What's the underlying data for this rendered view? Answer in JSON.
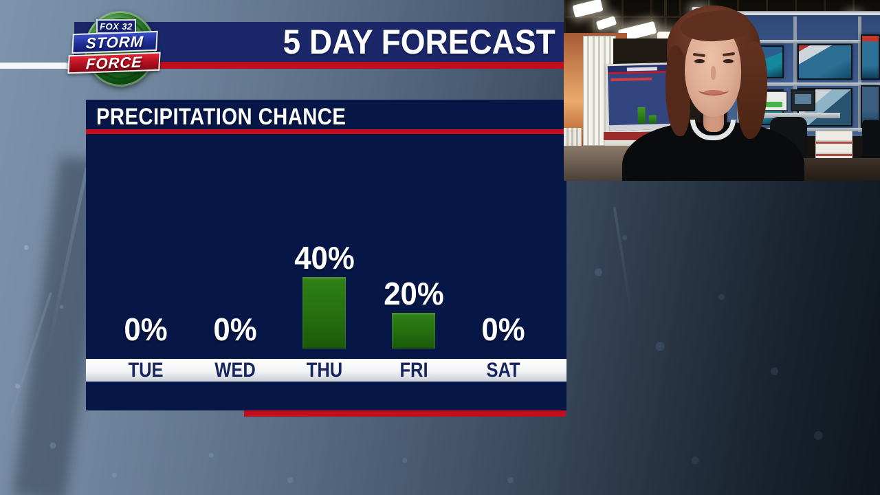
{
  "logo": {
    "fox": "FOX 32",
    "storm": "STORM",
    "force": "FORCE"
  },
  "header": {
    "title": "5 DAY FORECAST"
  },
  "panel": {
    "title": "PRECIPITATION CHANCE"
  },
  "chart_data": {
    "type": "bar",
    "title": "PRECIPITATION CHANCE",
    "categories": [
      "TUE",
      "WED",
      "THU",
      "FRI",
      "SAT"
    ],
    "values": [
      0,
      0,
      40,
      20,
      0
    ],
    "value_labels": [
      "0%",
      "0%",
      "40%",
      "20%",
      "0%"
    ],
    "unit": "%",
    "ylim": [
      0,
      100
    ],
    "grid": false,
    "legend_position": "none",
    "bar_color": "#256e10",
    "value_label_color": "#ffffff",
    "day_label_color": "#17255f"
  },
  "colors": {
    "header_navy": "#1b2768",
    "panel_navy": "#061647",
    "accent_red": "#c20d1d",
    "day_strip_white": "#f2f3f5",
    "logo_green": "#2b7b2b",
    "logo_blue": "#1d2c92",
    "logo_red": "#b11020"
  }
}
